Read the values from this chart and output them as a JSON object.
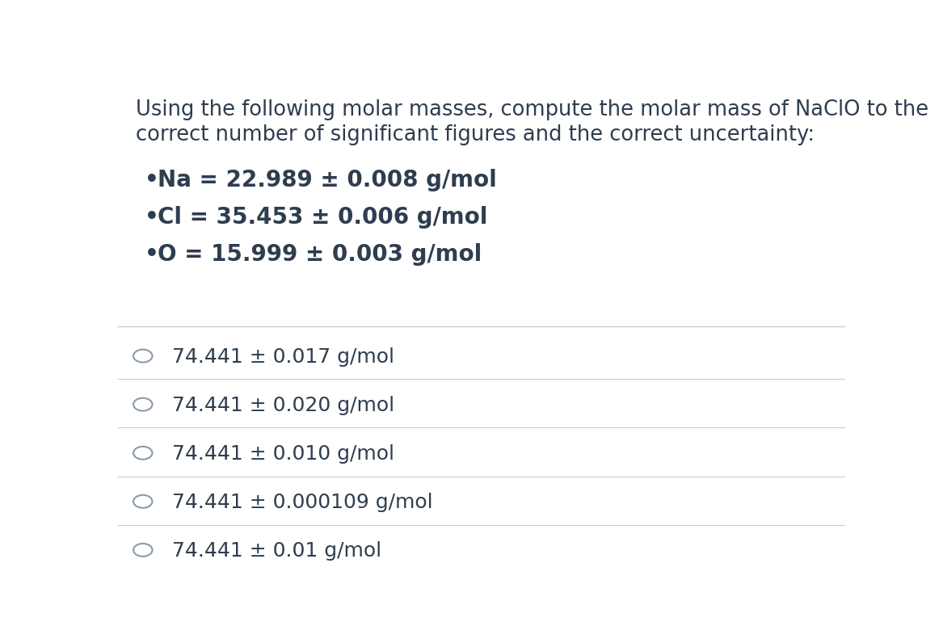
{
  "background_color": "#ffffff",
  "text_color": "#2e3d4f",
  "line_color": "#cccccc",
  "radio_color": "#8a9aaa",
  "title_line1": "Using the following molar masses, compute the molar mass of NaClO to the",
  "title_line2": "correct number of significant figures and the correct uncertainty:",
  "bullet_items": [
    "Na = 22.989 ± 0.008 g/mol",
    "Cl = 35.453 ± 0.006 g/mol",
    "O = 15.999 ± 0.003 g/mol"
  ],
  "choices": [
    "74.441 ± 0.017 g/mol",
    "74.441 ± 0.020 g/mol",
    "74.441 ± 0.010 g/mol",
    "74.441 ± 0.000109 g/mol",
    "74.441 ± 0.01 g/mol"
  ],
  "title_fontsize": 18.5,
  "bullet_fontsize": 20,
  "choice_fontsize": 18,
  "figsize": [
    11.62,
    7.96
  ],
  "dpi": 100
}
